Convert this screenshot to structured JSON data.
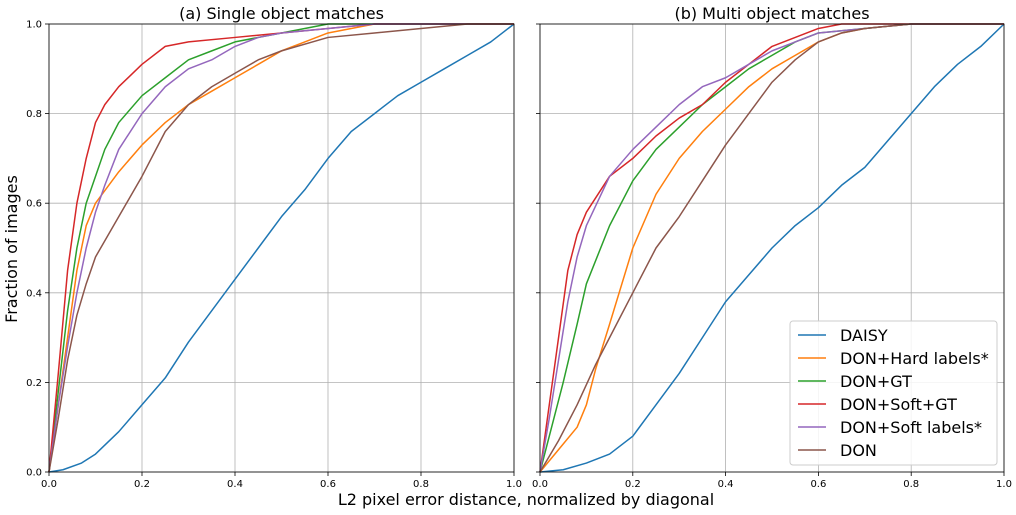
{
  "figure": {
    "ylabel": "Fraction of images",
    "xlabel": "L2 pixel error distance, normalized by diagonal"
  },
  "chart_data": [
    {
      "type": "line",
      "title": "(a) Single object matches",
      "xlim": [
        0,
        1
      ],
      "ylim": [
        0,
        1
      ],
      "xticks": [
        "0.0",
        "0.2",
        "0.4",
        "0.6",
        "0.8",
        "1.0"
      ],
      "yticks": [
        "0.0",
        "0.2",
        "0.4",
        "0.6",
        "0.8",
        "1.0"
      ],
      "grid": true,
      "series": [
        {
          "name": "DAISY",
          "color": "#1f77b4",
          "points": [
            [
              0,
              0
            ],
            [
              0.03,
              0.005
            ],
            [
              0.07,
              0.02
            ],
            [
              0.1,
              0.04
            ],
            [
              0.15,
              0.09
            ],
            [
              0.2,
              0.15
            ],
            [
              0.25,
              0.21
            ],
            [
              0.3,
              0.29
            ],
            [
              0.35,
              0.36
            ],
            [
              0.4,
              0.43
            ],
            [
              0.45,
              0.5
            ],
            [
              0.5,
              0.57
            ],
            [
              0.55,
              0.63
            ],
            [
              0.6,
              0.7
            ],
            [
              0.65,
              0.76
            ],
            [
              0.7,
              0.8
            ],
            [
              0.75,
              0.84
            ],
            [
              0.8,
              0.87
            ],
            [
              0.85,
              0.9
            ],
            [
              0.9,
              0.93
            ],
            [
              0.95,
              0.96
            ],
            [
              1.0,
              1.0
            ]
          ]
        },
        {
          "name": "DON+Hard labels*",
          "color": "#ff7f0e",
          "points": [
            [
              0,
              0
            ],
            [
              0.02,
              0.15
            ],
            [
              0.04,
              0.3
            ],
            [
              0.06,
              0.45
            ],
            [
              0.08,
              0.55
            ],
            [
              0.1,
              0.6
            ],
            [
              0.15,
              0.67
            ],
            [
              0.2,
              0.73
            ],
            [
              0.25,
              0.78
            ],
            [
              0.3,
              0.82
            ],
            [
              0.35,
              0.85
            ],
            [
              0.4,
              0.88
            ],
            [
              0.45,
              0.91
            ],
            [
              0.5,
              0.94
            ],
            [
              0.55,
              0.96
            ],
            [
              0.6,
              0.98
            ],
            [
              0.65,
              0.99
            ],
            [
              0.7,
              1.0
            ],
            [
              1.0,
              1.0
            ]
          ]
        },
        {
          "name": "DON+GT",
          "color": "#2ca02c",
          "points": [
            [
              0,
              0
            ],
            [
              0.02,
              0.18
            ],
            [
              0.04,
              0.36
            ],
            [
              0.06,
              0.5
            ],
            [
              0.08,
              0.6
            ],
            [
              0.1,
              0.66
            ],
            [
              0.12,
              0.72
            ],
            [
              0.15,
              0.78
            ],
            [
              0.2,
              0.84
            ],
            [
              0.25,
              0.88
            ],
            [
              0.3,
              0.92
            ],
            [
              0.35,
              0.94
            ],
            [
              0.4,
              0.96
            ],
            [
              0.45,
              0.97
            ],
            [
              0.5,
              0.98
            ],
            [
              0.55,
              0.99
            ],
            [
              0.6,
              1.0
            ],
            [
              1.0,
              1.0
            ]
          ]
        },
        {
          "name": "DON+Soft+GT",
          "color": "#d62728",
          "points": [
            [
              0,
              0
            ],
            [
              0.02,
              0.22
            ],
            [
              0.04,
              0.45
            ],
            [
              0.06,
              0.6
            ],
            [
              0.08,
              0.7
            ],
            [
              0.1,
              0.78
            ],
            [
              0.12,
              0.82
            ],
            [
              0.15,
              0.86
            ],
            [
              0.2,
              0.91
            ],
            [
              0.25,
              0.95
            ],
            [
              0.3,
              0.96
            ],
            [
              0.4,
              0.97
            ],
            [
              0.5,
              0.98
            ],
            [
              0.6,
              0.99
            ],
            [
              0.7,
              1.0
            ],
            [
              1.0,
              1.0
            ]
          ]
        },
        {
          "name": "DON+Soft labels*",
          "color": "#9467bd",
          "points": [
            [
              0,
              0
            ],
            [
              0.02,
              0.15
            ],
            [
              0.04,
              0.28
            ],
            [
              0.06,
              0.4
            ],
            [
              0.08,
              0.5
            ],
            [
              0.1,
              0.58
            ],
            [
              0.12,
              0.64
            ],
            [
              0.15,
              0.72
            ],
            [
              0.2,
              0.8
            ],
            [
              0.25,
              0.86
            ],
            [
              0.3,
              0.9
            ],
            [
              0.35,
              0.92
            ],
            [
              0.4,
              0.95
            ],
            [
              0.45,
              0.97
            ],
            [
              0.5,
              0.98
            ],
            [
              0.6,
              0.99
            ],
            [
              0.7,
              1.0
            ],
            [
              1.0,
              1.0
            ]
          ]
        },
        {
          "name": "DON",
          "color": "#8c564b",
          "points": [
            [
              0,
              0
            ],
            [
              0.02,
              0.12
            ],
            [
              0.04,
              0.25
            ],
            [
              0.06,
              0.35
            ],
            [
              0.08,
              0.42
            ],
            [
              0.1,
              0.48
            ],
            [
              0.15,
              0.57
            ],
            [
              0.2,
              0.66
            ],
            [
              0.25,
              0.76
            ],
            [
              0.3,
              0.82
            ],
            [
              0.35,
              0.86
            ],
            [
              0.4,
              0.89
            ],
            [
              0.45,
              0.92
            ],
            [
              0.5,
              0.94
            ],
            [
              0.6,
              0.97
            ],
            [
              0.7,
              0.98
            ],
            [
              0.8,
              0.99
            ],
            [
              0.9,
              1.0
            ],
            [
              1.0,
              1.0
            ]
          ]
        }
      ]
    },
    {
      "type": "line",
      "title": "(b) Multi object matches",
      "xlim": [
        0,
        1
      ],
      "ylim": [
        0,
        1
      ],
      "xticks": [
        "0.0",
        "0.2",
        "0.4",
        "0.6",
        "0.8",
        "1.0"
      ],
      "yticks": [],
      "grid": true,
      "legend": "lower-right",
      "series": [
        {
          "name": "DAISY",
          "color": "#1f77b4",
          "points": [
            [
              0,
              0
            ],
            [
              0.05,
              0.005
            ],
            [
              0.1,
              0.02
            ],
            [
              0.15,
              0.04
            ],
            [
              0.2,
              0.08
            ],
            [
              0.25,
              0.15
            ],
            [
              0.3,
              0.22
            ],
            [
              0.35,
              0.3
            ],
            [
              0.4,
              0.38
            ],
            [
              0.45,
              0.44
            ],
            [
              0.5,
              0.5
            ],
            [
              0.55,
              0.55
            ],
            [
              0.6,
              0.59
            ],
            [
              0.65,
              0.64
            ],
            [
              0.7,
              0.68
            ],
            [
              0.75,
              0.74
            ],
            [
              0.8,
              0.8
            ],
            [
              0.85,
              0.86
            ],
            [
              0.9,
              0.91
            ],
            [
              0.95,
              0.95
            ],
            [
              1.0,
              1.0
            ]
          ]
        },
        {
          "name": "DON+Hard labels*",
          "color": "#ff7f0e",
          "points": [
            [
              0,
              0
            ],
            [
              0.04,
              0.05
            ],
            [
              0.08,
              0.1
            ],
            [
              0.1,
              0.15
            ],
            [
              0.12,
              0.23
            ],
            [
              0.15,
              0.33
            ],
            [
              0.2,
              0.5
            ],
            [
              0.25,
              0.62
            ],
            [
              0.3,
              0.7
            ],
            [
              0.35,
              0.76
            ],
            [
              0.4,
              0.81
            ],
            [
              0.45,
              0.86
            ],
            [
              0.5,
              0.9
            ],
            [
              0.55,
              0.93
            ],
            [
              0.6,
              0.96
            ],
            [
              0.65,
              0.98
            ],
            [
              0.7,
              0.99
            ],
            [
              0.8,
              1.0
            ],
            [
              1.0,
              1.0
            ]
          ]
        },
        {
          "name": "DON+GT",
          "color": "#2ca02c",
          "points": [
            [
              0,
              0
            ],
            [
              0.02,
              0.08
            ],
            [
              0.05,
              0.2
            ],
            [
              0.08,
              0.33
            ],
            [
              0.1,
              0.42
            ],
            [
              0.15,
              0.55
            ],
            [
              0.2,
              0.65
            ],
            [
              0.25,
              0.72
            ],
            [
              0.3,
              0.77
            ],
            [
              0.35,
              0.82
            ],
            [
              0.4,
              0.86
            ],
            [
              0.45,
              0.9
            ],
            [
              0.5,
              0.93
            ],
            [
              0.55,
              0.96
            ],
            [
              0.6,
              0.98
            ],
            [
              0.7,
              0.99
            ],
            [
              0.8,
              1.0
            ],
            [
              1.0,
              1.0
            ]
          ]
        },
        {
          "name": "DON+Soft+GT",
          "color": "#d62728",
          "points": [
            [
              0,
              0
            ],
            [
              0.02,
              0.15
            ],
            [
              0.04,
              0.3
            ],
            [
              0.06,
              0.45
            ],
            [
              0.08,
              0.53
            ],
            [
              0.1,
              0.58
            ],
            [
              0.15,
              0.66
            ],
            [
              0.2,
              0.7
            ],
            [
              0.25,
              0.75
            ],
            [
              0.3,
              0.79
            ],
            [
              0.35,
              0.82
            ],
            [
              0.4,
              0.87
            ],
            [
              0.45,
              0.91
            ],
            [
              0.5,
              0.95
            ],
            [
              0.55,
              0.97
            ],
            [
              0.6,
              0.99
            ],
            [
              0.65,
              1.0
            ],
            [
              1.0,
              1.0
            ]
          ]
        },
        {
          "name": "DON+Soft labels*",
          "color": "#9467bd",
          "points": [
            [
              0,
              0
            ],
            [
              0.02,
              0.12
            ],
            [
              0.04,
              0.25
            ],
            [
              0.06,
              0.38
            ],
            [
              0.08,
              0.48
            ],
            [
              0.1,
              0.55
            ],
            [
              0.15,
              0.66
            ],
            [
              0.2,
              0.72
            ],
            [
              0.25,
              0.77
            ],
            [
              0.3,
              0.82
            ],
            [
              0.35,
              0.86
            ],
            [
              0.4,
              0.88
            ],
            [
              0.45,
              0.91
            ],
            [
              0.5,
              0.94
            ],
            [
              0.55,
              0.96
            ],
            [
              0.6,
              0.98
            ],
            [
              0.7,
              0.99
            ],
            [
              0.8,
              1.0
            ],
            [
              1.0,
              1.0
            ]
          ]
        },
        {
          "name": "DON",
          "color": "#8c564b",
          "points": [
            [
              0,
              0
            ],
            [
              0.04,
              0.07
            ],
            [
              0.08,
              0.15
            ],
            [
              0.12,
              0.24
            ],
            [
              0.16,
              0.32
            ],
            [
              0.2,
              0.4
            ],
            [
              0.25,
              0.5
            ],
            [
              0.3,
              0.57
            ],
            [
              0.35,
              0.65
            ],
            [
              0.4,
              0.73
            ],
            [
              0.45,
              0.8
            ],
            [
              0.5,
              0.87
            ],
            [
              0.55,
              0.92
            ],
            [
              0.6,
              0.96
            ],
            [
              0.65,
              0.98
            ],
            [
              0.7,
              0.99
            ],
            [
              0.8,
              1.0
            ],
            [
              1.0,
              1.0
            ]
          ]
        }
      ]
    }
  ]
}
